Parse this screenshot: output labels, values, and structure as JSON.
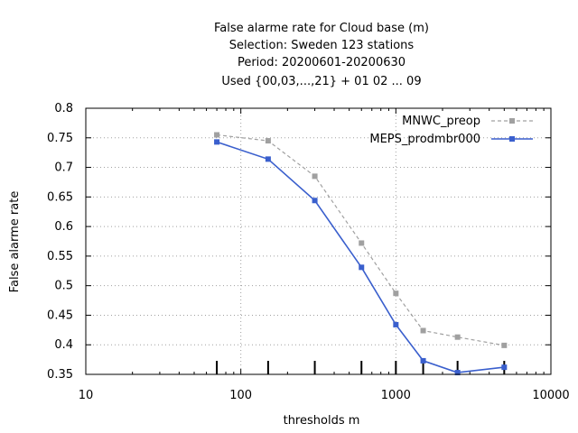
{
  "chart_data": {
    "type": "line",
    "title_lines": [
      "False alarme rate  for Cloud base (m)",
      "Selection: Sweden    123 stations",
      "Period: 20200601-20200630",
      "Used {00,03,...,21} + 01 02 ... 09"
    ],
    "xlabel": "thresholds m",
    "ylabel": "False alarme rate",
    "x_scale": "log",
    "xlim": [
      10,
      10000
    ],
    "ylim": [
      0.35,
      0.8
    ],
    "x_ticks": [
      10,
      100,
      1000,
      10000
    ],
    "x_tick_labels": [
      "10",
      "100",
      "1000",
      "10000"
    ],
    "y_ticks": [
      0.35,
      0.4,
      0.45,
      0.5,
      0.55,
      0.6,
      0.65,
      0.7,
      0.75,
      0.8
    ],
    "y_tick_labels": [
      "0.35",
      "0.4",
      "0.45",
      "0.5",
      "0.55",
      "0.6",
      "0.65",
      "0.7",
      "0.75",
      "0.8"
    ],
    "grid": true,
    "legend_position": "top-right",
    "x": [
      70,
      150,
      300,
      600,
      1000,
      1500,
      2500,
      5000
    ],
    "series": [
      {
        "name": "MNWC_preop",
        "color": "#a0a0a0",
        "dash": true,
        "values": [
          0.755,
          0.745,
          0.685,
          0.572,
          0.487,
          0.424,
          0.413,
          0.399
        ]
      },
      {
        "name": "MEPS_prodmbr000",
        "color": "#3a5fcd",
        "dash": false,
        "values": [
          0.743,
          0.714,
          0.644,
          0.531,
          0.434,
          0.373,
          0.353,
          0.362
        ]
      }
    ]
  }
}
